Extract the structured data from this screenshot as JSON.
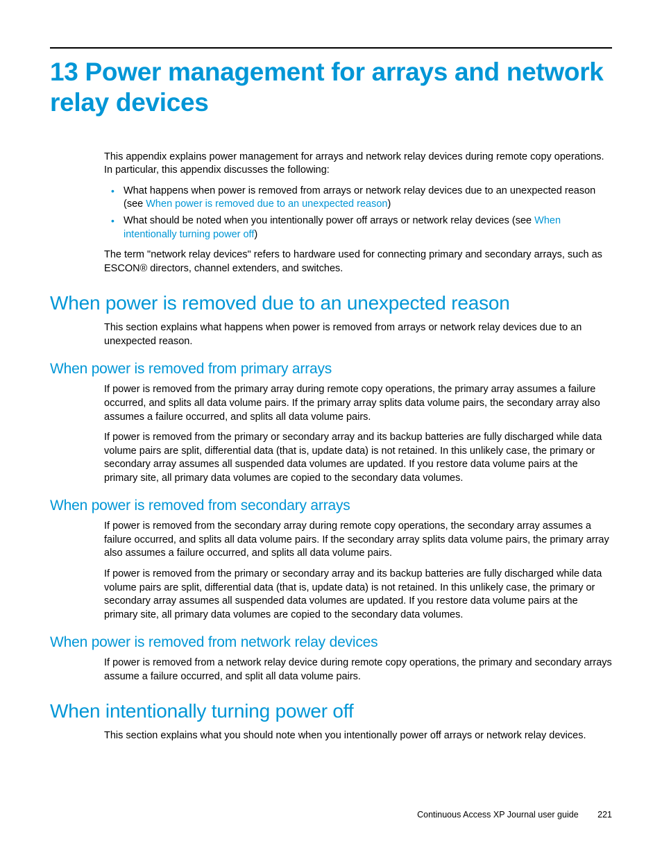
{
  "colors": {
    "accent": "#0096d6",
    "text": "#000000",
    "background": "#ffffff"
  },
  "typography": {
    "chapter_title_fontsize": 37,
    "h2_fontsize": 28,
    "h3_fontsize": 21,
    "body_fontsize": 14.5,
    "footer_fontsize": 12.5,
    "font_family": "Arial, Helvetica, sans-serif"
  },
  "chapter": {
    "number": "13",
    "title": "13 Power management for arrays and network relay devices"
  },
  "intro": {
    "p1": "This appendix explains power management for arrays and network relay devices during remote copy operations. In particular, this appendix discusses the following:",
    "bullets": [
      {
        "pre": "What happens when power is removed from arrays or network relay devices due to an unexpected reason (see ",
        "link": "When power is removed due to an unexpected reason",
        "post": ")"
      },
      {
        "pre": "What should be noted when you intentionally power off arrays or network relay devices (see ",
        "link": "When intentionally turning power off",
        "post": ")"
      }
    ],
    "p2": "The term \"network relay devices\" refers to hardware used for connecting primary and secondary arrays, such as ESCON® directors, channel extenders, and switches."
  },
  "section_unexpected": {
    "title": "When power is removed due to an unexpected reason",
    "intro": "This section explains what happens when power is removed from arrays or network relay devices due to an unexpected reason.",
    "primary": {
      "title": "When power is removed from primary arrays",
      "p1": "If power is removed from the primary array during remote copy operations, the primary array assumes a failure occurred, and splits all data volume pairs. If the primary array splits data volume pairs, the secondary array also assumes a failure occurred, and splits all data volume pairs.",
      "p2": "If power is removed from the primary or secondary array and its backup batteries are fully discharged while data volume pairs are split, differential data (that is, update data) is not retained. In this unlikely case, the primary or secondary array assumes all suspended data volumes are updated. If you restore data volume pairs at the primary site, all primary data volumes are copied to the secondary data volumes."
    },
    "secondary": {
      "title": "When power is removed from secondary arrays",
      "p1": "If power is removed from the secondary array during remote copy operations, the secondary array assumes a failure occurred, and splits all data volume pairs. If the secondary array splits data volume pairs, the primary array also assumes a failure occurred, and splits all data volume pairs.",
      "p2": "If power is removed from the primary or secondary array and its backup batteries are fully discharged while data volume pairs are split, differential data (that is, update data) is not retained. In this unlikely case, the primary or secondary array assumes all suspended data volumes are updated. If you restore data volume pairs at the primary site, all primary data volumes are copied to the secondary data volumes."
    },
    "relay": {
      "title": "When power is removed from network relay devices",
      "p1": "If power is removed from a network relay device during remote copy operations, the primary and secondary arrays assume a failure occurred, and split all data volume pairs."
    }
  },
  "section_intentional": {
    "title": "When intentionally turning power off",
    "intro": "This section explains what you should note when you intentionally power off arrays or network relay devices."
  },
  "footer": {
    "doc_title": "Continuous Access XP Journal user guide",
    "page_number": "221"
  }
}
